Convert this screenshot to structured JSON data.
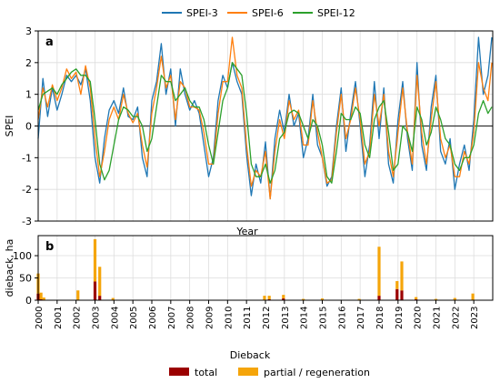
{
  "chart_data": [
    {
      "panel_label": "a",
      "type": "line",
      "ylabel": "SPEI",
      "ylim": [
        -3,
        3
      ],
      "yticks": [
        -3,
        -2,
        -1,
        0,
        1,
        2,
        3
      ],
      "xlim": [
        2000,
        2024
      ],
      "grid": true,
      "legend_position": "top",
      "series": [
        {
          "name": "SPEI-3",
          "color": "#1f77b4",
          "x": [
            2000.0,
            2000.25,
            2000.5,
            2000.75,
            2001.0,
            2001.25,
            2001.5,
            2001.75,
            2002.0,
            2002.25,
            2002.5,
            2002.75,
            2003.0,
            2003.25,
            2003.5,
            2003.75,
            2004.0,
            2004.25,
            2004.5,
            2004.75,
            2005.0,
            2005.25,
            2005.5,
            2005.75,
            2006.0,
            2006.25,
            2006.5,
            2006.75,
            2007.0,
            2007.25,
            2007.5,
            2007.75,
            2008.0,
            2008.25,
            2008.5,
            2008.75,
            2009.0,
            2009.25,
            2009.5,
            2009.75,
            2010.0,
            2010.25,
            2010.5,
            2010.75,
            2011.0,
            2011.25,
            2011.5,
            2011.75,
            2012.0,
            2012.25,
            2012.5,
            2012.75,
            2013.0,
            2013.25,
            2013.5,
            2013.75,
            2014.0,
            2014.25,
            2014.5,
            2014.75,
            2015.0,
            2015.25,
            2015.5,
            2015.75,
            2016.0,
            2016.25,
            2016.5,
            2016.75,
            2017.0,
            2017.25,
            2017.5,
            2017.75,
            2018.0,
            2018.25,
            2018.5,
            2018.75,
            2019.0,
            2019.25,
            2019.5,
            2019.75,
            2020.0,
            2020.25,
            2020.5,
            2020.75,
            2021.0,
            2021.25,
            2021.5,
            2021.75,
            2022.0,
            2022.25,
            2022.5,
            2022.75,
            2023.0,
            2023.25,
            2023.5,
            2023.75,
            2023.95
          ],
          "y": [
            -0.4,
            1.5,
            0.3,
            1.2,
            0.5,
            1.0,
            1.6,
            1.4,
            1.6,
            1.3,
            1.8,
            0.8,
            -1.0,
            -1.8,
            -0.4,
            0.5,
            0.8,
            0.4,
            1.2,
            0.3,
            0.2,
            0.6,
            -1.0,
            -1.6,
            0.8,
            1.4,
            2.6,
            1.0,
            1.8,
            0.0,
            1.8,
            1.0,
            0.5,
            0.8,
            0.4,
            -0.6,
            -1.6,
            -1.0,
            0.8,
            1.6,
            1.2,
            2.0,
            1.4,
            1.0,
            -0.9,
            -2.2,
            -1.2,
            -1.8,
            -0.5,
            -2.3,
            -0.4,
            0.5,
            -0.2,
            1.0,
            0.0,
            0.4,
            -1.0,
            -0.4,
            1.0,
            -0.6,
            -1.0,
            -1.9,
            -1.6,
            0.0,
            1.2,
            -0.8,
            0.4,
            1.4,
            0.0,
            -1.6,
            -0.6,
            1.4,
            -0.4,
            1.2,
            -1.2,
            -1.8,
            0.2,
            1.4,
            -0.4,
            -1.4,
            2.0,
            -0.6,
            -1.4,
            0.6,
            1.6,
            -0.8,
            -1.2,
            -0.4,
            -2.0,
            -1.2,
            -0.6,
            -1.4,
            0.2,
            2.8,
            1.0,
            1.6,
            2.8
          ]
        },
        {
          "name": "SPEI-6",
          "color": "#ff7f0e",
          "x": [
            2000.0,
            2000.25,
            2000.5,
            2000.75,
            2001.0,
            2001.25,
            2001.5,
            2001.75,
            2002.0,
            2002.25,
            2002.5,
            2002.75,
            2003.0,
            2003.25,
            2003.5,
            2003.75,
            2004.0,
            2004.25,
            2004.5,
            2004.75,
            2005.0,
            2005.25,
            2005.5,
            2005.75,
            2006.0,
            2006.25,
            2006.5,
            2006.75,
            2007.0,
            2007.25,
            2007.5,
            2007.75,
            2008.0,
            2008.25,
            2008.5,
            2008.75,
            2009.0,
            2009.25,
            2009.5,
            2009.75,
            2010.0,
            2010.25,
            2010.5,
            2010.75,
            2011.0,
            2011.25,
            2011.5,
            2011.75,
            2012.0,
            2012.25,
            2012.5,
            2012.75,
            2013.0,
            2013.25,
            2013.5,
            2013.75,
            2014.0,
            2014.25,
            2014.5,
            2014.75,
            2015.0,
            2015.25,
            2015.5,
            2015.75,
            2016.0,
            2016.25,
            2016.5,
            2016.75,
            2017.0,
            2017.25,
            2017.5,
            2017.75,
            2018.0,
            2018.25,
            2018.5,
            2018.75,
            2019.0,
            2019.25,
            2019.5,
            2019.75,
            2020.0,
            2020.25,
            2020.5,
            2020.75,
            2021.0,
            2021.25,
            2021.5,
            2021.75,
            2022.0,
            2022.25,
            2022.5,
            2022.75,
            2023.0,
            2023.25,
            2023.5,
            2023.75,
            2023.95
          ],
          "y": [
            0.2,
            1.2,
            0.6,
            1.3,
            0.8,
            1.2,
            1.8,
            1.5,
            1.7,
            1.0,
            1.9,
            1.2,
            -0.4,
            -1.6,
            -0.8,
            0.2,
            0.6,
            0.2,
            1.0,
            0.4,
            0.1,
            0.4,
            -0.6,
            -1.3,
            0.4,
            1.2,
            2.2,
            1.2,
            1.6,
            0.2,
            1.4,
            1.2,
            0.6,
            0.6,
            0.5,
            -0.2,
            -1.2,
            -1.2,
            0.4,
            1.4,
            1.4,
            2.8,
            1.6,
            1.2,
            -0.6,
            -1.9,
            -1.4,
            -1.6,
            -0.8,
            -2.3,
            -0.8,
            0.2,
            -0.4,
            0.8,
            0.2,
            0.5,
            -0.6,
            -0.6,
            0.8,
            -0.2,
            -1.0,
            -1.8,
            -1.7,
            -0.2,
            1.0,
            -0.4,
            0.2,
            1.2,
            0.2,
            -1.2,
            -0.8,
            1.0,
            0.0,
            1.0,
            -0.8,
            -1.6,
            -0.2,
            1.2,
            -0.2,
            -1.2,
            1.6,
            -0.2,
            -1.2,
            0.2,
            1.4,
            -0.4,
            -1.0,
            -0.6,
            -1.6,
            -1.6,
            -0.8,
            -1.2,
            -0.2,
            2.0,
            1.2,
            0.8,
            2.0
          ]
        },
        {
          "name": "SPEI-12",
          "color": "#2ca02c",
          "x": [
            2000.0,
            2000.25,
            2000.5,
            2000.75,
            2001.0,
            2001.25,
            2001.5,
            2001.75,
            2002.0,
            2002.25,
            2002.5,
            2002.75,
            2003.0,
            2003.25,
            2003.5,
            2003.75,
            2004.0,
            2004.25,
            2004.5,
            2004.75,
            2005.0,
            2005.25,
            2005.5,
            2005.75,
            2006.0,
            2006.25,
            2006.5,
            2006.75,
            2007.0,
            2007.25,
            2007.5,
            2007.75,
            2008.0,
            2008.25,
            2008.5,
            2008.75,
            2009.0,
            2009.25,
            2009.5,
            2009.75,
            2010.0,
            2010.25,
            2010.5,
            2010.75,
            2011.0,
            2011.25,
            2011.5,
            2011.75,
            2012.0,
            2012.25,
            2012.5,
            2012.75,
            2013.0,
            2013.25,
            2013.5,
            2013.75,
            2014.0,
            2014.25,
            2014.5,
            2014.75,
            2015.0,
            2015.25,
            2015.5,
            2015.75,
            2016.0,
            2016.25,
            2016.5,
            2016.75,
            2017.0,
            2017.25,
            2017.5,
            2017.75,
            2018.0,
            2018.25,
            2018.5,
            2018.75,
            2019.0,
            2019.25,
            2019.5,
            2019.75,
            2020.0,
            2020.25,
            2020.5,
            2020.75,
            2021.0,
            2021.25,
            2021.5,
            2021.75,
            2022.0,
            2022.25,
            2022.5,
            2022.75,
            2023.0,
            2023.25,
            2023.5,
            2023.75,
            2023.95
          ],
          "y": [
            0.5,
            1.0,
            1.1,
            1.2,
            1.0,
            1.3,
            1.5,
            1.7,
            1.8,
            1.6,
            1.6,
            1.4,
            0.2,
            -1.2,
            -1.7,
            -1.4,
            -0.6,
            0.2,
            0.6,
            0.5,
            0.3,
            0.3,
            0.0,
            -0.8,
            -0.4,
            0.6,
            1.6,
            1.4,
            1.4,
            0.8,
            1.0,
            1.2,
            0.8,
            0.6,
            0.6,
            0.2,
            -0.6,
            -1.2,
            -0.2,
            0.8,
            1.2,
            2.0,
            1.8,
            1.6,
            0.4,
            -1.2,
            -1.6,
            -1.6,
            -1.2,
            -1.8,
            -1.4,
            -0.4,
            -0.2,
            0.4,
            0.5,
            0.4,
            0.0,
            -0.4,
            0.2,
            0.0,
            -0.6,
            -1.6,
            -1.8,
            -0.8,
            0.4,
            0.2,
            0.2,
            0.6,
            0.4,
            -0.6,
            -1.0,
            0.2,
            0.6,
            0.8,
            -0.2,
            -1.4,
            -1.2,
            0.0,
            -0.2,
            -0.8,
            0.6,
            0.2,
            -0.6,
            -0.2,
            0.6,
            0.2,
            -0.4,
            -0.6,
            -1.2,
            -1.4,
            -1.0,
            -1.0,
            -0.6,
            0.4,
            0.8,
            0.4,
            0.6
          ]
        }
      ]
    },
    {
      "panel_label": "b",
      "type": "bar",
      "stacked": true,
      "xlabel": "Year",
      "ylabel": "dieback, ha",
      "ylim": [
        0,
        145
      ],
      "yticks": [
        0,
        50,
        100
      ],
      "xlim": [
        2000,
        2024
      ],
      "xticks": [
        "2000",
        "2001",
        "2002",
        "2003",
        "2004",
        "2005",
        "2006",
        "2007",
        "2008",
        "2009",
        "2010",
        "2011",
        "2012",
        "2013",
        "2014",
        "2015",
        "2016",
        "2017",
        "2018",
        "2019",
        "2020",
        "2021",
        "2022",
        "2023"
      ],
      "legend_title": "Dieback",
      "legend_position": "bottom",
      "x": [
        2000.0,
        2000.15,
        2000.3,
        2002.1,
        2003.0,
        2003.25,
        2003.95,
        2011.95,
        2012.2,
        2012.95,
        2014.0,
        2015.0,
        2016.95,
        2018.0,
        2018.95,
        2019.2,
        2019.95,
        2021.0,
        2022.0,
        2022.95
      ],
      "series": [
        {
          "name": "total",
          "color": "#9b0000",
          "values": [
            15,
            2,
            1,
            0,
            42,
            10,
            0,
            0,
            2,
            4,
            0,
            0,
            0,
            10,
            25,
            22,
            2,
            0,
            0,
            0
          ]
        },
        {
          "name": "partial / regeneration",
          "color": "#f5a50a",
          "values": [
            45,
            15,
            5,
            22,
            95,
            65,
            5,
            10,
            8,
            8,
            3,
            4,
            3,
            110,
            18,
            65,
            5,
            3,
            5,
            15
          ]
        }
      ]
    }
  ]
}
